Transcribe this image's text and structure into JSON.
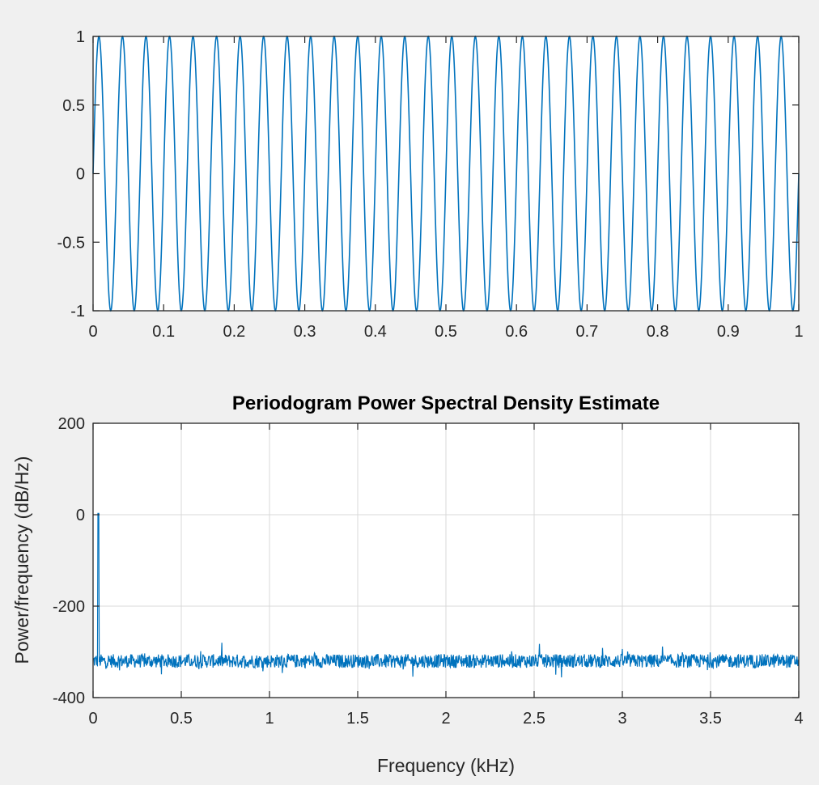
{
  "colors": {
    "figure_background": "#f0f0f0",
    "axes_background": "#ffffff",
    "axis_color": "#262626",
    "grid_color": "#d9d9d9",
    "line_color": "#0072bd"
  },
  "chart_data": [
    {
      "type": "line",
      "title": "",
      "xlabel": "",
      "ylabel": "",
      "xlim": [
        0,
        1
      ],
      "ylim": [
        -1,
        1
      ],
      "xticks": [
        0,
        0.1,
        0.2,
        0.3,
        0.4,
        0.5,
        0.6,
        0.7,
        0.8,
        0.9,
        1
      ],
      "xtick_labels": [
        "0",
        "0.1",
        "0.2",
        "0.3",
        "0.4",
        "0.5",
        "0.6",
        "0.7",
        "0.8",
        "0.9",
        "1"
      ],
      "yticks": [
        -1,
        -0.5,
        0,
        0.5,
        1
      ],
      "ytick_labels": [
        "-1",
        "-0.5",
        "0",
        "0.5",
        "1"
      ],
      "grid": false,
      "series": [
        {
          "function": "sin(2*pi*f*t)",
          "frequency_hz": 30,
          "amplitude": 1,
          "t_start": 0,
          "t_end": 1
        }
      ]
    },
    {
      "type": "line",
      "title": "Periodogram Power Spectral Density Estimate",
      "xlabel": "Frequency (kHz)",
      "ylabel": "Power/frequency (dB/Hz)",
      "xlim": [
        0,
        4
      ],
      "ylim": [
        -400,
        200
      ],
      "xticks": [
        0,
        0.5,
        1,
        1.5,
        2,
        2.5,
        3,
        3.5,
        4
      ],
      "xtick_labels": [
        "0",
        "0.5",
        "1",
        "1.5",
        "2",
        "2.5",
        "3",
        "3.5",
        "4"
      ],
      "yticks": [
        -400,
        -200,
        0,
        200
      ],
      "ytick_labels": [
        "-400",
        "-200",
        "0",
        "200"
      ],
      "grid": true,
      "series": [
        {
          "peak_frequency_khz": 0.03,
          "peak_value_db": 3,
          "noise_floor_db": -320,
          "noise_range_db": [
            -385,
            -280
          ]
        }
      ]
    }
  ]
}
